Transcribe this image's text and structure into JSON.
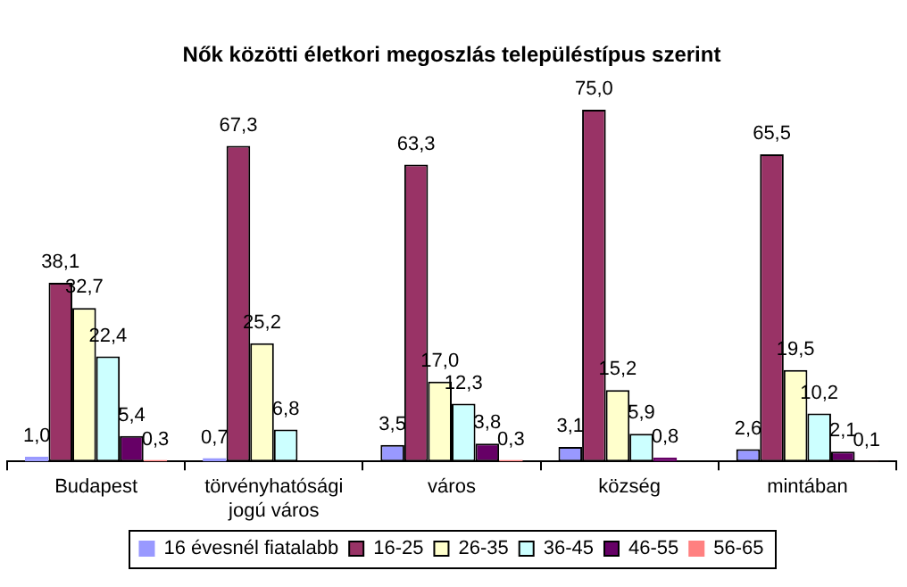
{
  "chart_data": {
    "type": "bar",
    "title": "Nők közötti életkori megoszlás településtípus szerint",
    "categories": [
      "Budapest",
      "törvényhatósági\njogú város",
      "város",
      "község",
      "mintában"
    ],
    "series": [
      {
        "name": "16 évesnél fiatalabb",
        "color": "#9999ff",
        "values": [
          1.0,
          0.7,
          3.5,
          3.1,
          2.6
        ],
        "value_labels": [
          "1,0",
          "0,7",
          "3,5",
          "3,1",
          "2,6"
        ]
      },
      {
        "name": "16-25",
        "color": "#993366",
        "values": [
          38.1,
          67.3,
          63.3,
          75.0,
          65.5
        ],
        "value_labels": [
          "38,1",
          "67,3",
          "63,3",
          "75,0",
          "65,5"
        ]
      },
      {
        "name": "26-35",
        "color": "#ffffcc",
        "values": [
          32.7,
          25.2,
          17.0,
          15.2,
          19.5
        ],
        "value_labels": [
          "32,7",
          "25,2",
          "17,0",
          "15,2",
          "19,5"
        ]
      },
      {
        "name": "36-45",
        "color": "#ccffff",
        "values": [
          22.4,
          6.8,
          12.3,
          5.9,
          10.2
        ],
        "value_labels": [
          "22,4",
          "6,8",
          "12,3",
          "5,9",
          "10,2"
        ]
      },
      {
        "name": "46-55",
        "color": "#660066",
        "values": [
          5.4,
          null,
          3.8,
          0.8,
          2.1
        ],
        "value_labels": [
          "5,4",
          null,
          "3,8",
          "0,8",
          "2,1"
        ]
      },
      {
        "name": "56-65",
        "color": "#ff8080",
        "values": [
          0.3,
          null,
          0.3,
          null,
          0.1
        ],
        "value_labels": [
          "0,3",
          null,
          "0,3",
          null,
          "0,1"
        ]
      }
    ],
    "grid": false,
    "legend": "bottom"
  }
}
